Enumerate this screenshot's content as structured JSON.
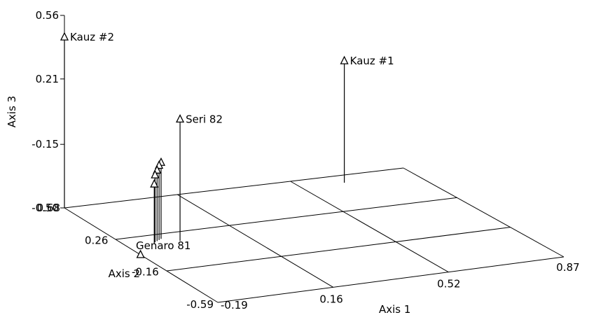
{
  "chart_data": {
    "type": "scatter",
    "projection": "3d",
    "axes": {
      "x": {
        "label": "Axis 1",
        "ticks": [
          "-0.19",
          "0.16",
          "0.52",
          "0.87"
        ],
        "range": [
          -0.19,
          0.87
        ]
      },
      "y": {
        "label": "Axis 2",
        "ticks": [
          "-0.59",
          "-0.16",
          "0.26",
          "0.68"
        ],
        "range": [
          -0.59,
          0.68
        ]
      },
      "z": {
        "label": "Axis 3",
        "ticks": [
          "-0.50",
          "-0.15",
          "0.21",
          "0.56"
        ],
        "range": [
          -0.5,
          0.56
        ]
      }
    },
    "floor_grid": true,
    "marker": "open-triangle",
    "points": [
      {
        "label": "Kauz #2",
        "x": -0.19,
        "y": 0.68,
        "z": 0.44
      },
      {
        "label": "Seri 82",
        "x": -0.03,
        "y": 0.15,
        "z": 0.17
      },
      {
        "label": "Kauz #1",
        "x": 0.65,
        "y": 0.59,
        "z": 0.17
      },
      {
        "label": "Genaro 81",
        "x": -0.19,
        "y": 0.05,
        "z": -0.5
      },
      {
        "label": "",
        "x": -0.07,
        "y": 0.2,
        "z": -0.08
      },
      {
        "label": "",
        "x": -0.08,
        "y": 0.19,
        "z": -0.09
      },
      {
        "label": "",
        "x": -0.09,
        "y": 0.18,
        "z": -0.11
      },
      {
        "label": "",
        "x": -0.1,
        "y": 0.17,
        "z": -0.13
      },
      {
        "label": "",
        "x": -0.11,
        "y": 0.15,
        "z": -0.17
      }
    ]
  }
}
